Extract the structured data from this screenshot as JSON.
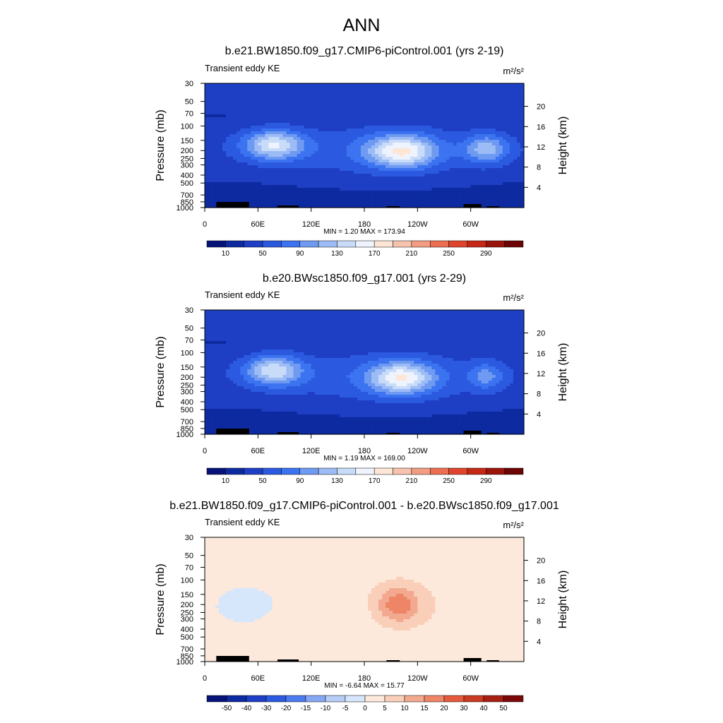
{
  "chart_data": {
    "title": "ANN",
    "panels": [
      {
        "type": "contour",
        "title": "b.e21.BW1850.f09_g17.CMIP6-piControl.001 (yrs 2-19)",
        "variable": "Transient eddy KE",
        "units": "m²/s²",
        "xlabel": "",
        "ylabel": "Pressure (mb)",
        "y2label": "Height (km)",
        "x_ticks": [
          "0",
          "60E",
          "120E",
          "180",
          "120W",
          "60W"
        ],
        "y_ticks": [
          "30",
          "50",
          "70",
          "100",
          "150",
          "200",
          "250",
          "300",
          "400",
          "500",
          "700",
          "850",
          "1000"
        ],
        "y2_ticks": [
          "20",
          "16",
          "12",
          "8",
          "4"
        ],
        "min_label": "MIN =   1.20",
        "max_label": "MAX = 173.94",
        "min": 1.2,
        "max": 173.94,
        "colorbar_labels": [
          "10",
          "50",
          "90",
          "130",
          "170",
          "210",
          "250",
          "290"
        ],
        "levels": [
          0,
          10,
          30,
          50,
          70,
          90,
          110,
          130,
          150,
          170,
          190,
          210,
          230,
          250,
          270,
          290,
          310
        ],
        "features": [
          {
            "label": "jet core near 70E, 150-200 mb",
            "lon": 78,
            "p": 170,
            "peak": 165,
            "lon_width": 34,
            "p_width": 0.42
          },
          {
            "label": "jet core near 130W, 200 mb",
            "lon": 222,
            "p": 205,
            "peak": 174,
            "lon_width": 38,
            "p_width": 0.45
          },
          {
            "label": "jet core near 40W, 200 mb",
            "lon": 318,
            "p": 190,
            "peak": 135,
            "lon_width": 24,
            "p_width": 0.4
          }
        ]
      },
      {
        "type": "contour",
        "title": "b.e20.BWsc1850.f09_g17.001 (yrs 2-29)",
        "variable": "Transient eddy KE",
        "units": "m²/s²",
        "xlabel": "",
        "ylabel": "Pressure (mb)",
        "y2label": "Height (km)",
        "x_ticks": [
          "0",
          "60E",
          "120E",
          "180",
          "120W",
          "60W"
        ],
        "y_ticks": [
          "30",
          "50",
          "70",
          "100",
          "150",
          "200",
          "250",
          "300",
          "400",
          "500",
          "700",
          "850",
          "1000"
        ],
        "y2_ticks": [
          "20",
          "16",
          "12",
          "8",
          "4"
        ],
        "min_label": "MIN =   1.19",
        "max_label": "MAX = 169.00",
        "min": 1.19,
        "max": 169.0,
        "colorbar_labels": [
          "10",
          "50",
          "90",
          "130",
          "170",
          "210",
          "250",
          "290"
        ],
        "levels": [
          0,
          10,
          30,
          50,
          70,
          90,
          110,
          130,
          150,
          170,
          190,
          210,
          230,
          250,
          270,
          290,
          310
        ],
        "features": [
          {
            "label": "jet core near 70E, 150 mb",
            "lon": 78,
            "p": 165,
            "peak": 160,
            "lon_width": 32,
            "p_width": 0.42
          },
          {
            "label": "jet core near 140W, 200 mb",
            "lon": 222,
            "p": 205,
            "peak": 169,
            "lon_width": 36,
            "p_width": 0.45
          },
          {
            "label": "jet core near 40W, 200 mb",
            "lon": 318,
            "p": 195,
            "peak": 110,
            "lon_width": 20,
            "p_width": 0.38
          }
        ]
      },
      {
        "type": "contour",
        "title": "b.e21.BW1850.f09_g17.CMIP6-piControl.001 - b.e20.BWsc1850.f09_g17.001",
        "variable": "Transient eddy KE",
        "units": "m²/s²",
        "xlabel": "",
        "ylabel": "Pressure (mb)",
        "y2label": "Height (km)",
        "x_ticks": [
          "0",
          "60E",
          "120E",
          "180",
          "120W",
          "60W"
        ],
        "y_ticks": [
          "30",
          "50",
          "70",
          "100",
          "150",
          "200",
          "250",
          "300",
          "400",
          "500",
          "700",
          "850",
          "1000"
        ],
        "y2_ticks": [
          "20",
          "16",
          "12",
          "8",
          "4"
        ],
        "min_label": "MIN =  -6.64",
        "max_label": "MAX =  15.77",
        "min": -6.64,
        "max": 15.77,
        "colorbar_labels": [
          "-50",
          "-40",
          "-30",
          "-20",
          "-15",
          "-10",
          "-5",
          "0",
          "5",
          "10",
          "15",
          "20",
          "30",
          "40",
          "50"
        ],
        "levels": [
          -60,
          -50,
          -40,
          -30,
          -20,
          -15,
          -10,
          -5,
          0,
          5,
          10,
          15,
          20,
          30,
          40,
          50,
          60
        ],
        "features": [
          {
            "label": "positive maximum near 130W, 200 mb",
            "lon": 218,
            "p": 200,
            "peak": 15.77,
            "lon_width": 24,
            "p_width": 0.5
          },
          {
            "label": "negative region upper troposphere east",
            "lon": 50,
            "p": 200,
            "peak": -6.64,
            "lon_width": 40,
            "p_width": 0.6
          }
        ]
      }
    ]
  },
  "colors": {
    "ke_colormap": [
      "#08137a",
      "#0d2aa0",
      "#1e3fc4",
      "#2b5ae0",
      "#3b73f0",
      "#6f9af2",
      "#9dbcf5",
      "#c8dcfa",
      "#eef3fd",
      "#fde6d6",
      "#f7c3ae",
      "#f29c83",
      "#ec6f54",
      "#e0442c",
      "#c52817",
      "#9b140b",
      "#6b0404"
    ],
    "diff_colormap": [
      "#08137a",
      "#0d2aa0",
      "#1e3fc4",
      "#2b5ae0",
      "#4c7bf0",
      "#86a8f3",
      "#b7cdf7",
      "#d6e6fb",
      "#fde9dc",
      "#f9cfb9",
      "#f3a98f",
      "#ee8566",
      "#e45a3d",
      "#c93a22",
      "#a52013",
      "#7a0808"
    ],
    "terrain": "#000000"
  }
}
